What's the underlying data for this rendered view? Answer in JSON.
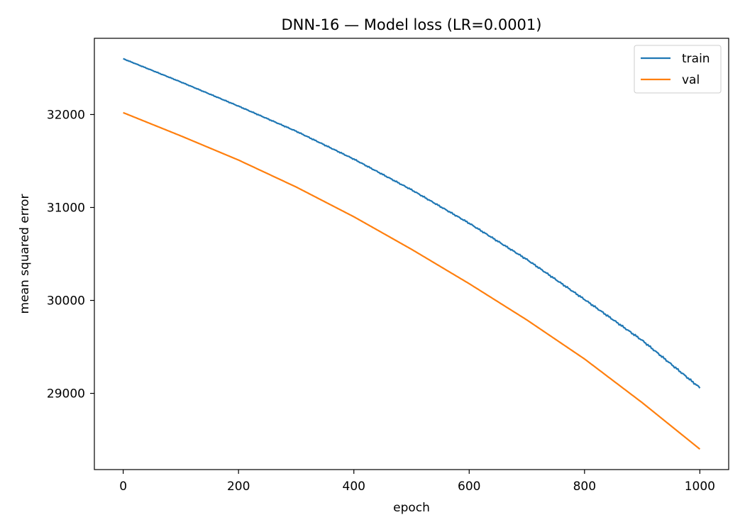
{
  "chart_data": {
    "type": "line",
    "title": "DNN-16 — Model loss (LR=0.0001)",
    "xlabel": "epoch",
    "ylabel": "mean squared error",
    "xlim": [
      -50,
      1050
    ],
    "ylim": [
      28180,
      32820
    ],
    "xticks": [
      0,
      200,
      400,
      600,
      800,
      1000
    ],
    "yticks": [
      29000,
      30000,
      31000,
      32000
    ],
    "grid": false,
    "legend_position": "top-right",
    "series": [
      {
        "name": "train",
        "color": "#1f77b4",
        "x": [
          0,
          100,
          200,
          300,
          400,
          500,
          600,
          700,
          800,
          900,
          1000
        ],
        "y": [
          32600,
          32350,
          32090,
          31820,
          31520,
          31190,
          30830,
          30440,
          30010,
          29570,
          29060
        ],
        "noise": true
      },
      {
        "name": "val",
        "color": "#ff7f0e",
        "x": [
          0,
          100,
          200,
          300,
          400,
          500,
          600,
          700,
          800,
          900,
          1000
        ],
        "y": [
          32020,
          31770,
          31510,
          31220,
          30900,
          30550,
          30180,
          29790,
          29370,
          28900,
          28400
        ],
        "noise": false
      }
    ]
  }
}
